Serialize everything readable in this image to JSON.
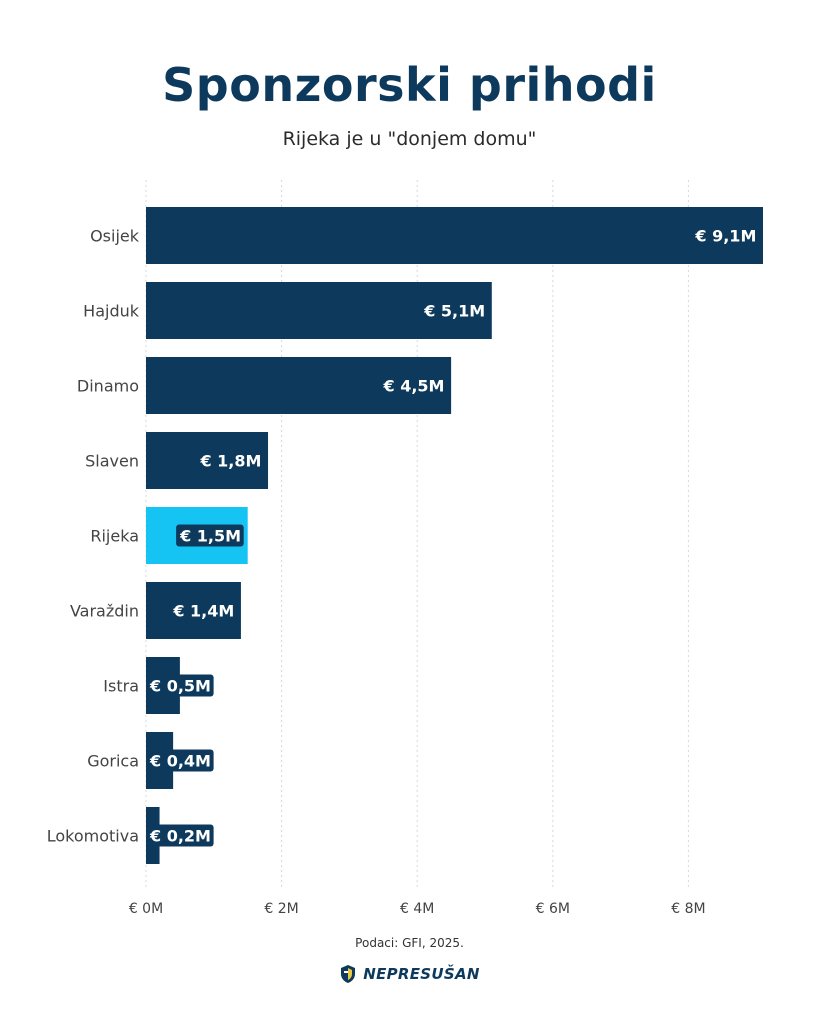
{
  "header": {
    "title": "Sponzorski prihodi",
    "subtitle": "Rijeka je u \"donjem domu\""
  },
  "footer": {
    "source": "Podaci: GFI, 2025.",
    "brand": "NEPRESUŠAN"
  },
  "colors": {
    "bar": "#0d3a5c",
    "highlight": "#16c4f4",
    "grid": "#d9d9d9",
    "text": "#444444"
  },
  "chart_data": {
    "type": "bar",
    "orientation": "horizontal",
    "categories": [
      "Osijek",
      "Hajduk",
      "Dinamo",
      "Slaven",
      "Rijeka",
      "Varaždin",
      "Istra",
      "Gorica",
      "Lokomotiva"
    ],
    "values": [
      9.1,
      5.1,
      4.5,
      1.8,
      1.5,
      1.4,
      0.5,
      0.4,
      0.2
    ],
    "value_labels": [
      "€ 9,1M",
      "€ 5,1M",
      "€ 4,5M",
      "€ 1,8M",
      "€ 1,5M",
      "€ 1,4M",
      "€ 0,5M",
      "€ 0,4M",
      "€ 0,2M"
    ],
    "highlight_category": "Rijeka",
    "x_ticks": [
      0,
      2,
      4,
      6,
      8
    ],
    "x_tick_labels": [
      "€ 0M",
      "€ 2M",
      "€ 4M",
      "€ 6M",
      "€ 8M"
    ],
    "xlim": [
      0,
      9.1
    ],
    "grid": "vertical-dotted",
    "legend": "none"
  }
}
